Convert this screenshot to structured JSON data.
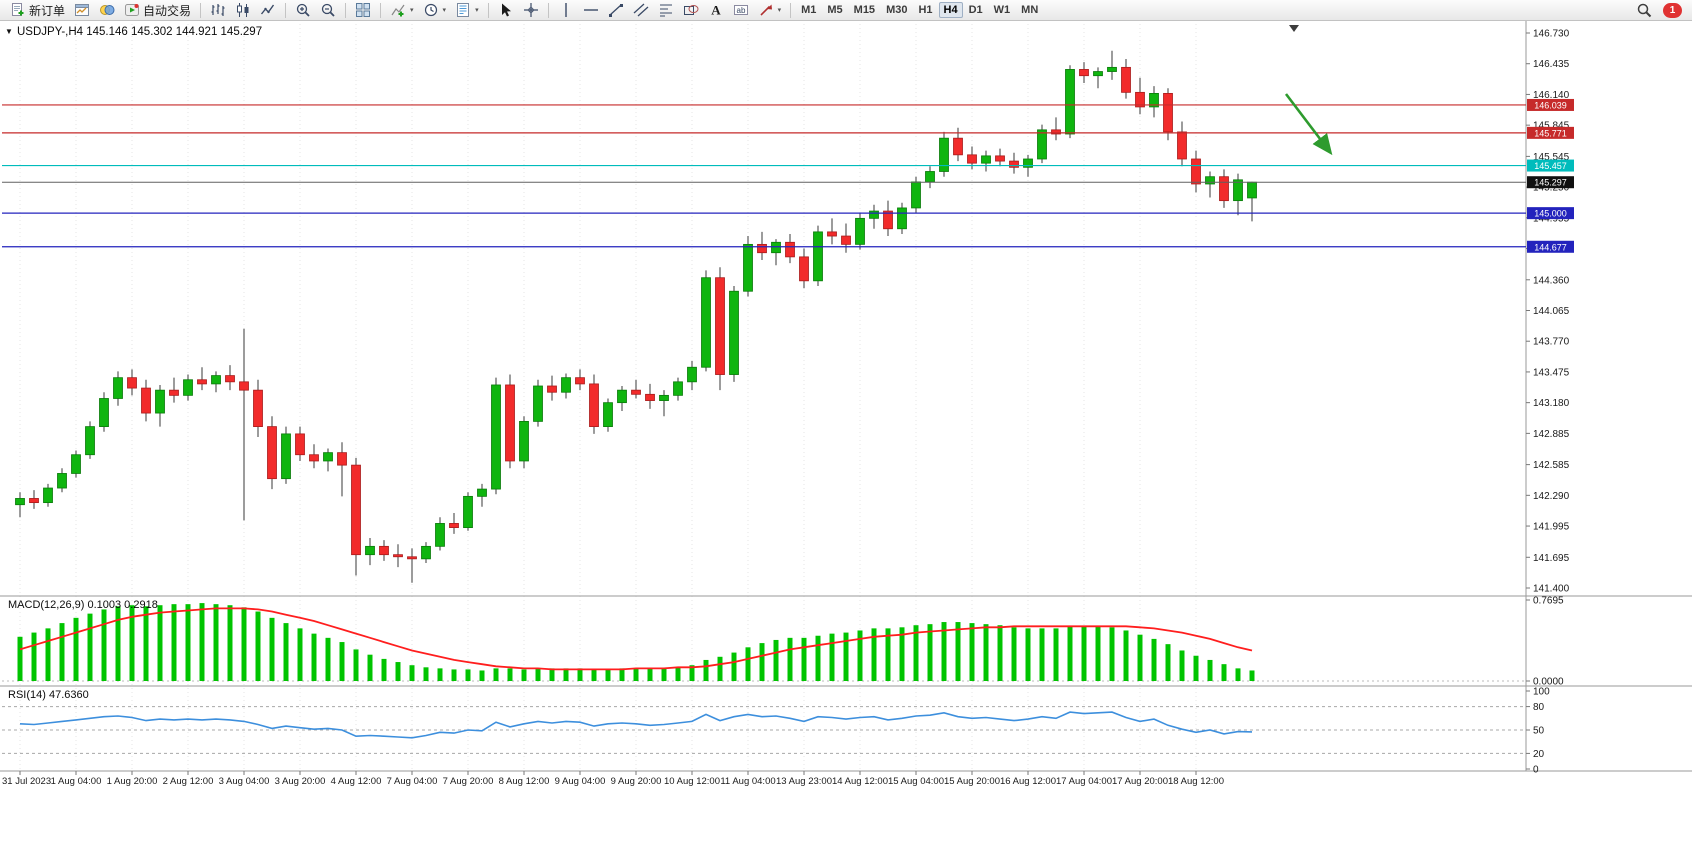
{
  "toolbar": {
    "items": [
      {
        "name": "new-order-button",
        "icon": "new-order",
        "label": "新订单"
      },
      {
        "name": "chart-window-button",
        "icon": "chart-window"
      },
      {
        "name": "metaeditor-button",
        "icon": "metaeditor"
      },
      {
        "name": "autotrading-button",
        "icon": "autotrading",
        "label": "自动交易"
      },
      {
        "sep": true
      },
      {
        "name": "bar-chart-button",
        "icon": "bar-chart"
      },
      {
        "name": "candlestick-button",
        "icon": "candles"
      },
      {
        "name": "line-chart-button",
        "icon": "line-chart"
      },
      {
        "sep": true
      },
      {
        "name": "zoom-in-button",
        "icon": "zoom-in"
      },
      {
        "name": "zoom-out-button",
        "icon": "zoom-out"
      },
      {
        "sep": true
      },
      {
        "name": "tile-windows-button",
        "icon": "tiles"
      },
      {
        "sep": true
      },
      {
        "name": "indicators-button",
        "icon": "indicators",
        "caret": true
      },
      {
        "name": "periods-button",
        "icon": "clock",
        "caret": true
      },
      {
        "name": "templates-button",
        "icon": "template",
        "caret": true
      },
      {
        "sep": true
      },
      {
        "name": "cursor-button",
        "icon": "cursor"
      },
      {
        "name": "crosshair-button",
        "icon": "crosshair"
      },
      {
        "sep": true
      },
      {
        "name": "vertical-line-button",
        "icon": "vline"
      },
      {
        "name": "horizontal-line-button",
        "icon": "hline"
      },
      {
        "name": "trendline-button",
        "icon": "trendline"
      },
      {
        "name": "channel-button",
        "icon": "channel"
      },
      {
        "name": "fibonacci-button",
        "icon": "fibo"
      },
      {
        "name": "shapes-button",
        "icon": "shapes"
      },
      {
        "name": "text-button",
        "icon": "text"
      },
      {
        "name": "text-label-button",
        "icon": "label"
      },
      {
        "name": "arrows-button",
        "icon": "arrows",
        "caret": true
      },
      {
        "sep": true
      }
    ],
    "timeframes": [
      "M1",
      "M5",
      "M15",
      "M30",
      "H1",
      "H4",
      "D1",
      "W1",
      "MN"
    ],
    "active_timeframe": "H4",
    "notification_badge": "1"
  },
  "chart": {
    "symbol_info": "USDJPY-,H4 145.146 145.302 144.921 145.297",
    "price_axis_ticks": [
      "146.730",
      "146.435",
      "146.140",
      "145.845",
      "145.545",
      "145.250",
      "144.955",
      "144.660",
      "144.360",
      "144.065",
      "143.770",
      "143.475",
      "143.180",
      "142.885",
      "142.585",
      "142.290",
      "141.995",
      "141.695",
      "141.400"
    ],
    "lines": [
      {
        "name": "resistance-line-1",
        "price": "146.039",
        "color": "#c62a2a"
      },
      {
        "name": "resistance-line-2",
        "price": "145.771",
        "color": "#c62a2a"
      },
      {
        "name": "pivot-line",
        "price": "145.457",
        "color": "#00bcbc"
      },
      {
        "name": "support-line-1",
        "price": "145.000",
        "color": "#2323bd"
      },
      {
        "name": "support-line-2",
        "price": "144.677",
        "color": "#2323bd"
      }
    ],
    "current_price": {
      "price": "145.297",
      "line_color": "#606060",
      "tag_color": "#101010"
    },
    "arrow_annotation": {
      "color": "#2e9b2e"
    }
  },
  "indicators": {
    "macd_label": "MACD(12,26,9) 0.1003 0.2918",
    "macd_axis_ticks": [
      "0.7695",
      "0.0000"
    ],
    "rsi_label": "RSI(14) 47.6360",
    "rsi_axis_ticks": [
      "100",
      "80",
      "50",
      "20",
      "0"
    ]
  },
  "chart_data": {
    "type": "candlestick",
    "symbol": "USDJPY-",
    "timeframe": "H4",
    "y_range": [
      141.4,
      146.73
    ],
    "time_labels": [
      "31 Jul 2023",
      "1 Aug 04:00",
      "1 Aug 20:00",
      "2 Aug 12:00",
      "3 Aug 04:00",
      "3 Aug 20:00",
      "4 Aug 12:00",
      "7 Aug 04:00",
      "7 Aug 20:00",
      "8 Aug 12:00",
      "9 Aug 04:00",
      "9 Aug 20:00",
      "10 Aug 12:00",
      "11 Aug 04:00",
      "13 Aug 23:00",
      "14 Aug 12:00",
      "15 Aug 04:00",
      "15 Aug 20:00",
      "16 Aug 12:00",
      "17 Aug 04:00",
      "17 Aug 20:00",
      "18 Aug 12:00"
    ],
    "horizontal_levels": [
      146.039,
      145.771,
      145.457,
      145.0,
      144.677
    ],
    "current_price": 145.297,
    "candles": [
      [
        142.2,
        142.32,
        142.08,
        142.26
      ],
      [
        142.26,
        142.34,
        142.16,
        142.22
      ],
      [
        142.22,
        142.4,
        142.18,
        142.36
      ],
      [
        142.36,
        142.55,
        142.32,
        142.5
      ],
      [
        142.5,
        142.72,
        142.46,
        142.68
      ],
      [
        142.68,
        143.0,
        142.64,
        142.95
      ],
      [
        142.95,
        143.28,
        142.9,
        143.22
      ],
      [
        143.22,
        143.48,
        143.15,
        143.42
      ],
      [
        143.42,
        143.5,
        143.25,
        143.32
      ],
      [
        143.32,
        143.4,
        143.0,
        143.08
      ],
      [
        143.08,
        143.35,
        142.95,
        143.3
      ],
      [
        143.3,
        143.42,
        143.18,
        143.25
      ],
      [
        143.25,
        143.45,
        143.2,
        143.4
      ],
      [
        143.4,
        143.52,
        143.3,
        143.36
      ],
      [
        143.36,
        143.48,
        143.28,
        143.44
      ],
      [
        143.44,
        143.54,
        143.3,
        143.38
      ],
      [
        143.38,
        143.89,
        142.05,
        143.3
      ],
      [
        143.3,
        143.4,
        142.85,
        142.95
      ],
      [
        142.95,
        143.05,
        142.35,
        142.45
      ],
      [
        142.45,
        142.95,
        142.4,
        142.88
      ],
      [
        142.88,
        142.95,
        142.62,
        142.68
      ],
      [
        142.68,
        142.78,
        142.55,
        142.62
      ],
      [
        142.62,
        142.74,
        142.52,
        142.7
      ],
      [
        142.7,
        142.8,
        142.28,
        142.58
      ],
      [
        142.58,
        142.65,
        141.52,
        141.72
      ],
      [
        141.72,
        141.88,
        141.62,
        141.8
      ],
      [
        141.8,
        141.86,
        141.66,
        141.72
      ],
      [
        141.72,
        141.82,
        141.6,
        141.7
      ],
      [
        141.7,
        141.78,
        141.45,
        141.68
      ],
      [
        141.68,
        141.84,
        141.64,
        141.8
      ],
      [
        141.8,
        142.08,
        141.76,
        142.02
      ],
      [
        142.02,
        142.12,
        141.92,
        141.98
      ],
      [
        141.98,
        142.32,
        141.95,
        142.28
      ],
      [
        142.28,
        142.4,
        142.18,
        142.35
      ],
      [
        142.35,
        143.42,
        142.3,
        143.35
      ],
      [
        143.35,
        143.45,
        142.55,
        142.62
      ],
      [
        142.62,
        143.05,
        142.55,
        143.0
      ],
      [
        143.0,
        143.4,
        142.95,
        143.34
      ],
      [
        143.34,
        143.44,
        143.2,
        143.28
      ],
      [
        143.28,
        143.46,
        143.22,
        143.42
      ],
      [
        143.42,
        143.5,
        143.3,
        143.36
      ],
      [
        143.36,
        143.45,
        142.88,
        142.95
      ],
      [
        142.95,
        143.22,
        142.9,
        143.18
      ],
      [
        143.18,
        143.34,
        143.1,
        143.3
      ],
      [
        143.3,
        143.4,
        143.22,
        143.26
      ],
      [
        143.26,
        143.36,
        143.12,
        143.2
      ],
      [
        143.2,
        143.3,
        143.05,
        143.25
      ],
      [
        143.25,
        143.42,
        143.2,
        143.38
      ],
      [
        143.38,
        143.58,
        143.3,
        143.52
      ],
      [
        143.52,
        144.45,
        143.48,
        144.38
      ],
      [
        144.38,
        144.48,
        143.3,
        143.45
      ],
      [
        143.45,
        144.3,
        143.38,
        144.25
      ],
      [
        144.25,
        144.78,
        144.2,
        144.7
      ],
      [
        144.7,
        144.82,
        144.55,
        144.62
      ],
      [
        144.62,
        144.75,
        144.5,
        144.72
      ],
      [
        144.72,
        144.8,
        144.52,
        144.58
      ],
      [
        144.58,
        144.66,
        144.28,
        144.35
      ],
      [
        144.35,
        144.88,
        144.3,
        144.82
      ],
      [
        144.82,
        144.95,
        144.7,
        144.78
      ],
      [
        144.78,
        144.9,
        144.62,
        144.7
      ],
      [
        144.7,
        145.0,
        144.65,
        144.95
      ],
      [
        144.95,
        145.08,
        144.85,
        145.02
      ],
      [
        145.02,
        145.12,
        144.78,
        144.85
      ],
      [
        144.85,
        145.1,
        144.8,
        145.05
      ],
      [
        145.05,
        145.35,
        145.0,
        145.3
      ],
      [
        145.3,
        145.45,
        145.24,
        145.4
      ],
      [
        145.4,
        145.78,
        145.35,
        145.72
      ],
      [
        145.72,
        145.82,
        145.5,
        145.56
      ],
      [
        145.56,
        145.64,
        145.42,
        145.48
      ],
      [
        145.48,
        145.6,
        145.4,
        145.55
      ],
      [
        145.55,
        145.62,
        145.45,
        145.5
      ],
      [
        145.5,
        145.58,
        145.38,
        145.44
      ],
      [
        145.44,
        145.56,
        145.35,
        145.52
      ],
      [
        145.52,
        145.85,
        145.48,
        145.8
      ],
      [
        145.8,
        145.92,
        145.7,
        145.76
      ],
      [
        145.76,
        146.42,
        145.72,
        146.38
      ],
      [
        146.38,
        146.45,
        146.25,
        146.32
      ],
      [
        146.32,
        146.4,
        146.2,
        146.36
      ],
      [
        146.36,
        146.56,
        146.28,
        146.4
      ],
      [
        146.4,
        146.48,
        146.1,
        146.16
      ],
      [
        146.16,
        146.3,
        145.95,
        146.02
      ],
      [
        146.02,
        146.22,
        145.92,
        146.15
      ],
      [
        146.15,
        146.2,
        145.7,
        145.78
      ],
      [
        145.78,
        145.88,
        145.45,
        145.52
      ],
      [
        145.52,
        145.6,
        145.2,
        145.28
      ],
      [
        145.28,
        145.4,
        145.15,
        145.35
      ],
      [
        145.35,
        145.42,
        145.05,
        145.12
      ],
      [
        145.12,
        145.38,
        144.98,
        145.32
      ],
      [
        145.146,
        145.302,
        144.921,
        145.297
      ]
    ],
    "indicators": {
      "macd": {
        "params": "12,26,9",
        "range": [
          0,
          0.7695
        ],
        "last_histogram": 0.1003,
        "last_signal": 0.2918,
        "histogram": [
          0.42,
          0.46,
          0.5,
          0.55,
          0.6,
          0.64,
          0.68,
          0.71,
          0.72,
          0.71,
          0.72,
          0.73,
          0.73,
          0.74,
          0.73,
          0.72,
          0.7,
          0.66,
          0.6,
          0.55,
          0.5,
          0.45,
          0.41,
          0.37,
          0.3,
          0.25,
          0.21,
          0.18,
          0.15,
          0.13,
          0.12,
          0.11,
          0.11,
          0.1,
          0.12,
          0.12,
          0.11,
          0.12,
          0.12,
          0.12,
          0.12,
          0.11,
          0.11,
          0.12,
          0.12,
          0.12,
          0.12,
          0.13,
          0.15,
          0.2,
          0.23,
          0.27,
          0.32,
          0.36,
          0.39,
          0.41,
          0.41,
          0.43,
          0.45,
          0.46,
          0.48,
          0.5,
          0.5,
          0.51,
          0.53,
          0.54,
          0.56,
          0.56,
          0.55,
          0.54,
          0.53,
          0.51,
          0.5,
          0.5,
          0.5,
          0.52,
          0.52,
          0.52,
          0.51,
          0.48,
          0.44,
          0.4,
          0.35,
          0.29,
          0.24,
          0.2,
          0.16,
          0.12,
          0.1
        ],
        "signal": [
          0.3,
          0.34,
          0.38,
          0.42,
          0.46,
          0.5,
          0.54,
          0.58,
          0.61,
          0.63,
          0.65,
          0.66,
          0.67,
          0.68,
          0.69,
          0.69,
          0.69,
          0.68,
          0.66,
          0.63,
          0.6,
          0.57,
          0.53,
          0.49,
          0.45,
          0.41,
          0.37,
          0.33,
          0.29,
          0.26,
          0.23,
          0.2,
          0.18,
          0.16,
          0.14,
          0.13,
          0.12,
          0.12,
          0.11,
          0.11,
          0.11,
          0.11,
          0.11,
          0.11,
          0.12,
          0.12,
          0.12,
          0.13,
          0.13,
          0.14,
          0.16,
          0.18,
          0.21,
          0.24,
          0.27,
          0.3,
          0.32,
          0.34,
          0.36,
          0.38,
          0.4,
          0.42,
          0.43,
          0.44,
          0.46,
          0.47,
          0.48,
          0.49,
          0.5,
          0.51,
          0.51,
          0.52,
          0.52,
          0.52,
          0.52,
          0.52,
          0.52,
          0.52,
          0.52,
          0.52,
          0.51,
          0.5,
          0.48,
          0.46,
          0.43,
          0.4,
          0.36,
          0.32,
          0.29
        ]
      },
      "rsi": {
        "period": 14,
        "range": [
          0,
          100
        ],
        "levels": [
          80,
          50,
          20
        ],
        "last": 47.636,
        "values": [
          58,
          57,
          59,
          61,
          63,
          65,
          67,
          68,
          66,
          62,
          64,
          63,
          64,
          63,
          64,
          63,
          61,
          57,
          52,
          55,
          53,
          51,
          52,
          50,
          42,
          43,
          42,
          41,
          40,
          43,
          47,
          46,
          50,
          49,
          60,
          54,
          58,
          61,
          59,
          61,
          60,
          55,
          58,
          59,
          58,
          56,
          57,
          59,
          61,
          70,
          62,
          67,
          70,
          67,
          68,
          65,
          61,
          67,
          66,
          64,
          66,
          67,
          63,
          65,
          68,
          69,
          72,
          67,
          65,
          66,
          64,
          62,
          64,
          67,
          65,
          73,
          71,
          72,
          73,
          66,
          61,
          64,
          56,
          51,
          47,
          50,
          45,
          48,
          47.6
        ]
      }
    }
  }
}
